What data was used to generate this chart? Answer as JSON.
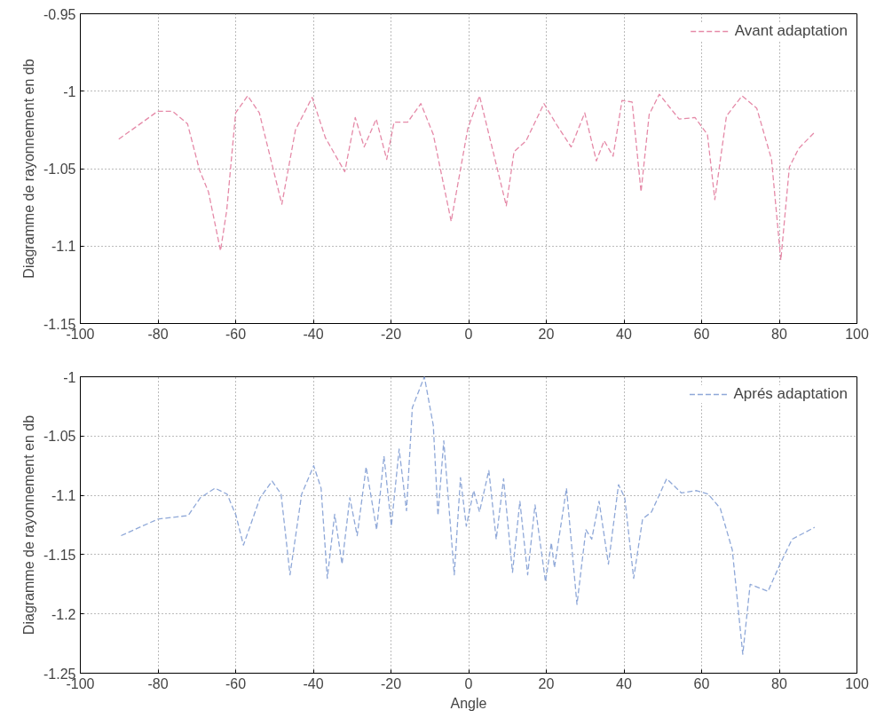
{
  "chart_data": [
    {
      "type": "line",
      "ylabel": "Diagramme de rayonnement en db",
      "xlim": [
        -100,
        100
      ],
      "xticks": [
        -100,
        -80,
        -60,
        -40,
        -20,
        0,
        20,
        40,
        60,
        80,
        100
      ],
      "ylim": [
        -1.15,
        -0.95
      ],
      "yticks": [
        -1.15,
        -1.1,
        -1.05,
        -1,
        -0.95
      ],
      "grid": true,
      "legend": "top right",
      "line_style": "dashed",
      "series": [
        {
          "name": "Avant adaptation",
          "color": "#e58aa8",
          "x": [
            -90.1,
            -80.1,
            -76.2,
            -72.4,
            -69.3,
            -67,
            -63.9,
            -62.3,
            -60,
            -56.9,
            -53.9,
            -48.1,
            -44.6,
            -40.3,
            -36.9,
            -31.9,
            -29.2,
            -26.9,
            -23.8,
            -21.1,
            -19.2,
            -15.7,
            -12.3,
            -9.1,
            -4.5,
            -0.2,
            2.8,
            6.3,
            9.7,
            11.7,
            14.8,
            19.4,
            22.5,
            26.4,
            29.9,
            32.9,
            34.9,
            37.2,
            39.5,
            42.1,
            44.4,
            46.5,
            49.1,
            54.2,
            58.3,
            61.5,
            63.4,
            66.4,
            70.4,
            74.2,
            78,
            80.4,
            82.6,
            85,
            88.9
          ],
          "values": [
            -1.031,
            -1.013,
            -1.013,
            -1.021,
            -1.051,
            -1.065,
            -1.103,
            -1.077,
            -1.014,
            -1.003,
            -1.014,
            -1.073,
            -1.025,
            -1.004,
            -1.03,
            -1.052,
            -1.017,
            -1.036,
            -1.018,
            -1.044,
            -1.02,
            -1.02,
            -1.008,
            -1.028,
            -1.084,
            -1.024,
            -1.003,
            -1.039,
            -1.074,
            -1.039,
            -1.032,
            -1.008,
            -1.021,
            -1.036,
            -1.014,
            -1.045,
            -1.032,
            -1.042,
            -1.006,
            -1.007,
            -1.065,
            -1.015,
            -1.002,
            -1.018,
            -1.017,
            -1.028,
            -1.07,
            -1.016,
            -1.003,
            -1.011,
            -1.044,
            -1.109,
            -1.049,
            -1.037,
            -1.027
          ]
        }
      ]
    },
    {
      "type": "line",
      "xlabel": "Angle",
      "ylabel": "Diagramme de rayonnement en db",
      "xlim": [
        -100,
        100
      ],
      "xticks": [
        -100,
        -80,
        -60,
        -40,
        -20,
        0,
        20,
        40,
        60,
        80,
        100
      ],
      "ylim": [
        -1.25,
        -1
      ],
      "yticks": [
        -1.25,
        -1.2,
        -1.15,
        -1.1,
        -1.05,
        -1
      ],
      "grid": true,
      "legend": "top right",
      "line_style": "dashed",
      "series": [
        {
          "name": "Aprés adaptation",
          "color": "#8fa8d8",
          "x": [
            -89.5,
            -80,
            -72.2,
            -69.1,
            -65.3,
            -62.2,
            -59.9,
            -58,
            -53.7,
            -50.6,
            -48.3,
            -46,
            -43,
            -39.9,
            -38,
            -36.4,
            -34.5,
            -32.6,
            -30.6,
            -28.7,
            -26.4,
            -23.7,
            -21.8,
            -19.9,
            -17.9,
            -16,
            -14.5,
            -11.4,
            -9.1,
            -7.9,
            -6.4,
            -3.7,
            -2.1,
            -0.6,
            1.3,
            2.8,
            5.2,
            7.1,
            9,
            11.3,
            13.2,
            15.2,
            17.1,
            19.8,
            21.3,
            22.1,
            25.2,
            27.9,
            30.2,
            31.7,
            33.6,
            36,
            38.6,
            40.2,
            42.5,
            44.8,
            47.1,
            51,
            54.8,
            58.7,
            61.7,
            64.8,
            67.9,
            70.6,
            72.5,
            77.1,
            80.2,
            83.3,
            89.1
          ],
          "values": [
            -1.134,
            -1.12,
            -1.117,
            -1.102,
            -1.094,
            -1.099,
            -1.117,
            -1.142,
            -1.102,
            -1.088,
            -1.099,
            -1.167,
            -1.099,
            -1.075,
            -1.094,
            -1.17,
            -1.116,
            -1.158,
            -1.102,
            -1.134,
            -1.076,
            -1.129,
            -1.067,
            -1.126,
            -1.061,
            -1.113,
            -1.026,
            -1.0,
            -1.041,
            -1.117,
            -1.054,
            -1.167,
            -1.085,
            -1.126,
            -1.096,
            -1.114,
            -1.079,
            -1.137,
            -1.086,
            -1.165,
            -1.105,
            -1.167,
            -1.108,
            -1.173,
            -1.14,
            -1.161,
            -1.094,
            -1.192,
            -1.129,
            -1.137,
            -1.105,
            -1.158,
            -1.091,
            -1.102,
            -1.17,
            -1.12,
            -1.114,
            -1.086,
            -1.098,
            -1.096,
            -1.099,
            -1.111,
            -1.146,
            -1.234,
            -1.175,
            -1.181,
            -1.158,
            -1.137,
            -1.127
          ]
        }
      ]
    }
  ]
}
